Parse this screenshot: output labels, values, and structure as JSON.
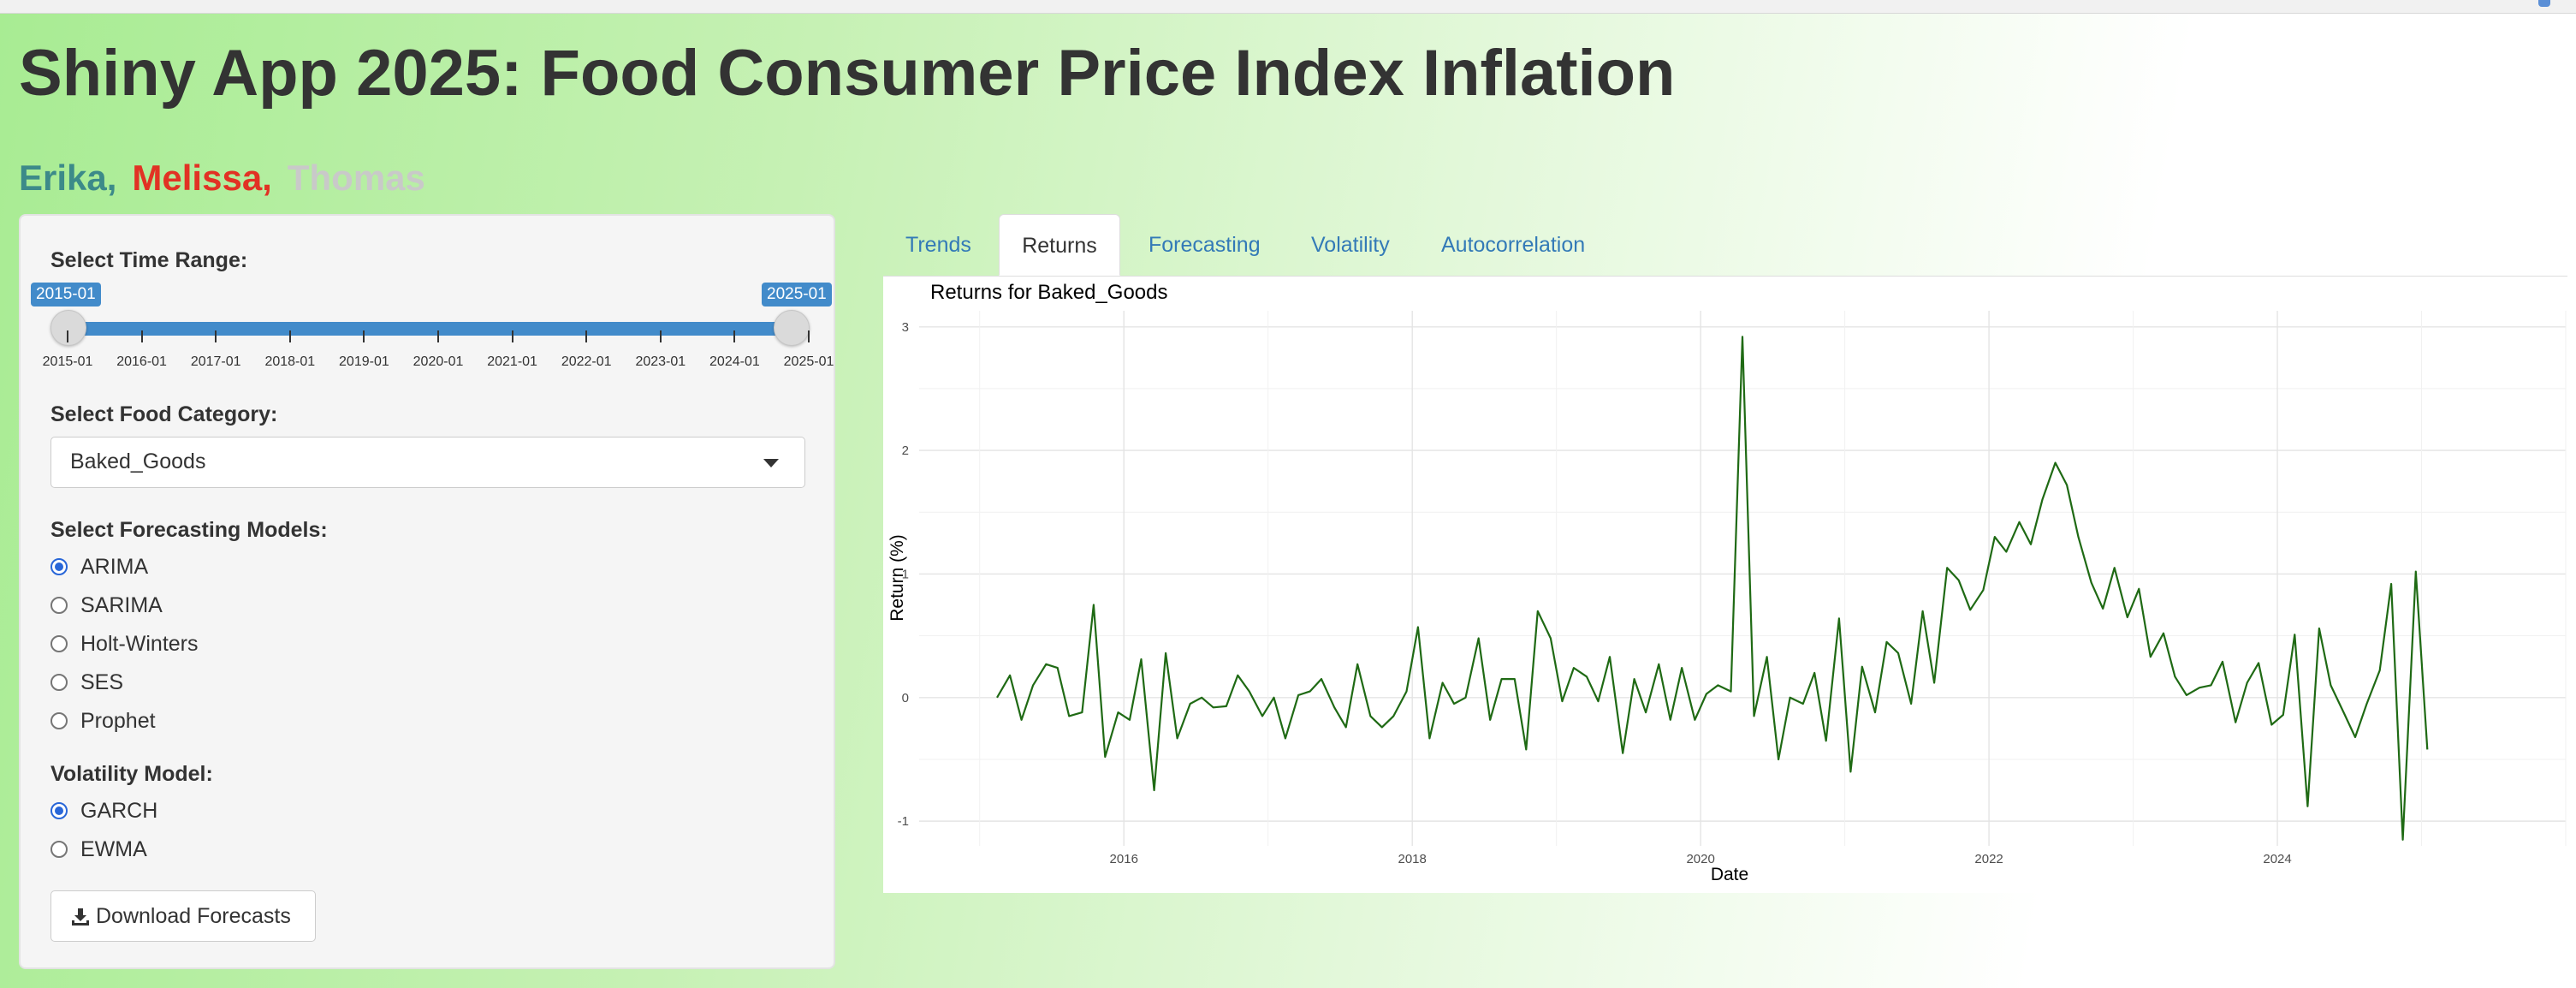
{
  "header": {
    "title": "Shiny App 2025: Food Consumer Price Index Inflation",
    "authors": [
      {
        "name": "Erika,",
        "color": "#3c8a89"
      },
      {
        "name": "Melissa,",
        "color": "#e13224"
      },
      {
        "name": "Thomas",
        "color": "#c9c9c9"
      }
    ]
  },
  "sidebar": {
    "time_range": {
      "label": "Select Time Range:",
      "from": "2015-01",
      "to": "2025-01",
      "ticks": [
        "2015-01",
        "2016-01",
        "2017-01",
        "2018-01",
        "2019-01",
        "2020-01",
        "2021-01",
        "2022-01",
        "2023-01",
        "2024-01",
        "2025-01"
      ]
    },
    "category": {
      "label": "Select Food Category:",
      "value": "Baked_Goods"
    },
    "models": {
      "label": "Select Forecasting Models:",
      "options": [
        "ARIMA",
        "SARIMA",
        "Holt-Winters",
        "SES",
        "Prophet"
      ],
      "selected": "ARIMA"
    },
    "volatility": {
      "label": "Volatility Model:",
      "options": [
        "GARCH",
        "EWMA"
      ],
      "selected": "GARCH"
    },
    "download_label": "Download Forecasts",
    "download_icon": "download-icon"
  },
  "tabs": {
    "items": [
      "Trends",
      "Returns",
      "Forecasting",
      "Volatility",
      "Autocorrelation"
    ],
    "active": "Returns"
  },
  "chart_data": {
    "type": "line",
    "title": "Returns for Baked_Goods",
    "xlabel": "Date",
    "ylabel": "Return (%)",
    "xlim": [
      2014.58,
      2026.0
    ],
    "ylim": [
      -1.2,
      3.13
    ],
    "x_ticks": [
      2016,
      2018,
      2020,
      2022,
      2024
    ],
    "y_ticks": [
      -1,
      0,
      1,
      2,
      3
    ],
    "grid": true,
    "line_color": "#1f6a14",
    "series": [
      {
        "x": [
          2015.12,
          2015.21,
          2015.29,
          2015.37,
          2015.46,
          2015.54,
          2015.62,
          2015.71,
          2015.79,
          2015.87,
          2015.96,
          2016.04,
          2016.12,
          2016.21,
          2016.29,
          2016.37,
          2016.46,
          2016.54,
          2016.62,
          2016.71,
          2016.79,
          2016.87,
          2016.96,
          2017.04,
          2017.12,
          2017.21,
          2017.29,
          2017.37,
          2017.46,
          2017.54,
          2017.62,
          2017.71,
          2017.79,
          2017.87,
          2017.96,
          2018.04,
          2018.12,
          2018.21,
          2018.29,
          2018.37,
          2018.46,
          2018.54,
          2018.62,
          2018.71,
          2018.79,
          2018.87,
          2018.96,
          2019.04,
          2019.12,
          2019.21,
          2019.29,
          2019.37,
          2019.46,
          2019.54,
          2019.62,
          2019.71,
          2019.79,
          2019.87,
          2019.96,
          2020.04,
          2020.12,
          2020.21,
          2020.29,
          2020.37,
          2020.46,
          2020.54,
          2020.62,
          2020.71,
          2020.79,
          2020.87,
          2020.96,
          2021.04,
          2021.12,
          2021.21,
          2021.29,
          2021.37,
          2021.46,
          2021.54,
          2021.62,
          2021.71,
          2021.79,
          2021.87,
          2021.96,
          2022.04,
          2022.12,
          2022.21,
          2022.29,
          2022.37,
          2022.46,
          2022.54,
          2022.62,
          2022.71,
          2022.79,
          2022.87,
          2022.96,
          2023.04,
          2023.12,
          2023.21,
          2023.29,
          2023.37,
          2023.46,
          2023.54,
          2023.62,
          2023.71,
          2023.79,
          2023.87,
          2023.96,
          2024.04,
          2024.12,
          2024.21,
          2024.29,
          2024.37,
          2024.46,
          2024.54,
          2024.62,
          2024.71,
          2024.79,
          2024.87,
          2024.96,
          2025.04
        ],
        "y": [
          0.0,
          0.18,
          -0.18,
          0.1,
          0.27,
          0.24,
          -0.15,
          -0.12,
          0.75,
          -0.48,
          -0.12,
          -0.18,
          0.31,
          -0.75,
          0.36,
          -0.33,
          -0.05,
          0.0,
          -0.08,
          -0.07,
          0.18,
          0.05,
          -0.15,
          0.0,
          -0.33,
          0.02,
          0.05,
          0.15,
          -0.08,
          -0.24,
          0.27,
          -0.15,
          -0.24,
          -0.15,
          0.05,
          0.57,
          -0.33,
          0.12,
          -0.05,
          0.0,
          0.48,
          -0.18,
          0.15,
          0.15,
          -0.42,
          0.7,
          0.48,
          -0.03,
          0.24,
          0.17,
          -0.03,
          0.33,
          -0.45,
          0.15,
          -0.12,
          0.27,
          -0.18,
          0.24,
          -0.18,
          0.03,
          0.1,
          0.05,
          2.92,
          -0.15,
          0.33,
          -0.5,
          0.0,
          -0.05,
          0.2,
          -0.35,
          0.64,
          -0.6,
          0.25,
          -0.12,
          0.45,
          0.36,
          -0.05,
          0.7,
          0.12,
          1.05,
          0.95,
          0.71,
          0.87,
          1.3,
          1.18,
          1.42,
          1.24,
          1.6,
          1.9,
          1.72,
          1.3,
          0.93,
          0.72,
          1.05,
          0.65,
          0.88,
          0.33,
          0.52,
          0.17,
          0.02,
          0.08,
          0.1,
          0.29,
          -0.2,
          0.12,
          0.28,
          -0.22,
          -0.14,
          0.51,
          -0.88,
          0.56,
          0.1,
          -0.12,
          -0.32,
          -0.05,
          0.22,
          0.92,
          -1.15,
          1.02,
          -0.42
        ]
      }
    ]
  }
}
